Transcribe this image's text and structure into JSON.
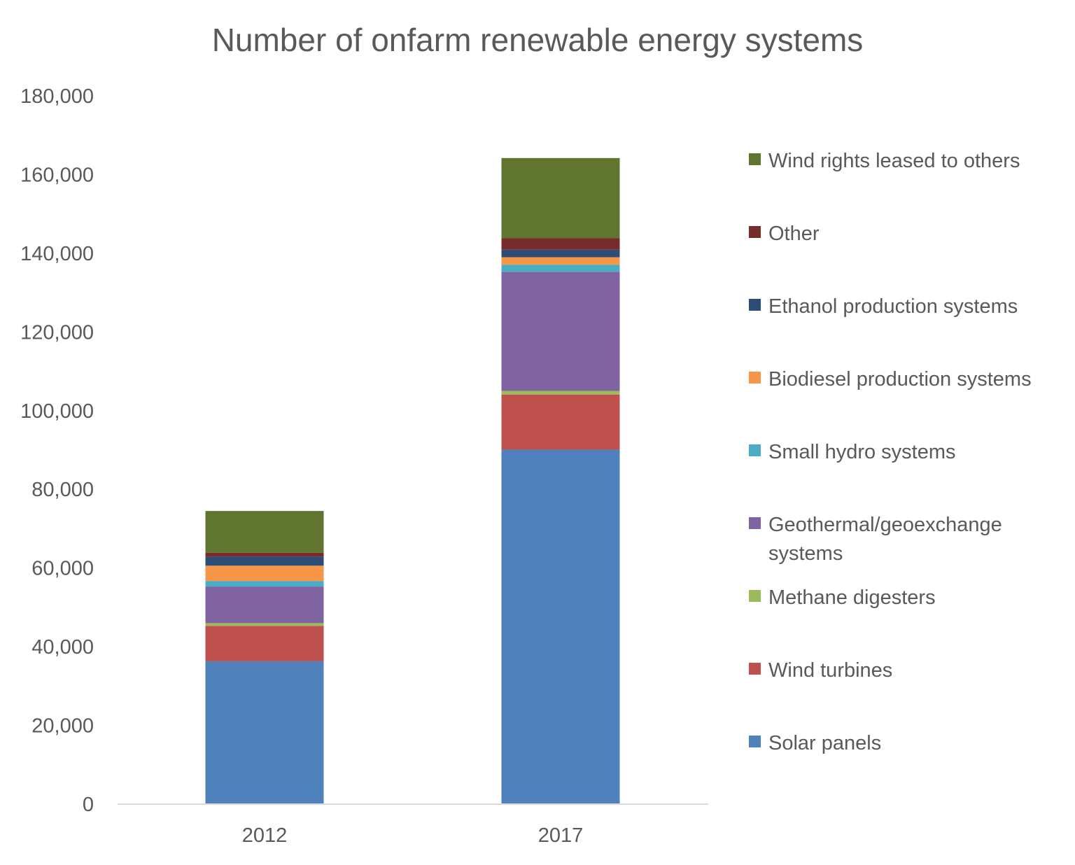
{
  "chart_data": {
    "type": "bar",
    "stacked": true,
    "title": "Number of onfarm renewable energy systems",
    "xlabel": "",
    "ylabel": "",
    "ylim": [
      0,
      180000
    ],
    "yticks": [
      0,
      20000,
      40000,
      60000,
      80000,
      100000,
      120000,
      140000,
      160000,
      180000
    ],
    "ytick_labels": [
      "0",
      "20,000",
      "40,000",
      "60,000",
      "80,000",
      "100,000",
      "120,000",
      "140,000",
      "160,000",
      "180,000"
    ],
    "categories": [
      "2012",
      "2017"
    ],
    "grid": false,
    "legend_position": "right",
    "series": [
      {
        "name": "Solar panels",
        "color": "#4f81bd",
        "values": [
          36300,
          90100
        ]
      },
      {
        "name": "Wind turbines",
        "color": "#c0504d",
        "values": [
          9000,
          14000
        ]
      },
      {
        "name": "Methane digesters",
        "color": "#9bbb59",
        "values": [
          700,
          900
        ]
      },
      {
        "name": "Geothermal/geoexchange systems",
        "color": "#8064a2",
        "values": [
          9300,
          30300
        ]
      },
      {
        "name": "Small hydro systems",
        "color": "#4bacc6",
        "values": [
          1400,
          1800
        ]
      },
      {
        "name": "Biodiesel production systems",
        "color": "#f79646",
        "values": [
          3900,
          1900
        ]
      },
      {
        "name": "Ethanol production systems",
        "color": "#2c4d75",
        "values": [
          2300,
          1900
        ]
      },
      {
        "name": "Other",
        "color": "#772c2a",
        "values": [
          1000,
          2900
        ]
      },
      {
        "name": "Wind rights leased to others",
        "color": "#5f7530",
        "values": [
          10600,
          20400
        ]
      }
    ]
  }
}
